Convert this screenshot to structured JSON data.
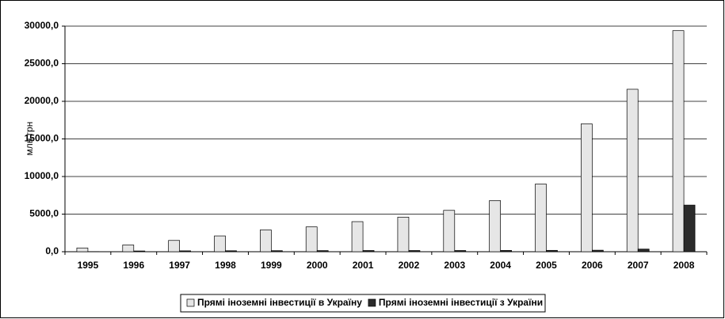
{
  "chart_data": {
    "type": "bar",
    "y_label": "млн грн",
    "categories": [
      "1995",
      "1996",
      "1997",
      "1998",
      "1999",
      "2000",
      "2001",
      "2002",
      "2003",
      "2004",
      "2005",
      "2006",
      "2007",
      "2008"
    ],
    "series": [
      {
        "name": "Прямі іноземні інвестиції в Україну",
        "color": "#e6e6e6",
        "values": [
          500,
          900,
          1500,
          2100,
          2900,
          3300,
          4000,
          4600,
          5500,
          6800,
          9000,
          17000,
          21600,
          29400
        ]
      },
      {
        "name": "Прямі іноземні інвестиції з України",
        "color": "#2b2b2b",
        "values": [
          20,
          100,
          120,
          130,
          140,
          150,
          160,
          160,
          160,
          170,
          180,
          200,
          350,
          6200
        ]
      }
    ],
    "ylim": [
      0,
      30000
    ],
    "yticks": [
      {
        "value": 0,
        "label": "0,0"
      },
      {
        "value": 5000,
        "label": "5000,0"
      },
      {
        "value": 10000,
        "label": "10000,0"
      },
      {
        "value": 15000,
        "label": "15000,0"
      },
      {
        "value": 20000,
        "label": "20000,0"
      },
      {
        "value": 25000,
        "label": "25000,0"
      },
      {
        "value": 30000,
        "label": "30000,0"
      }
    ],
    "grid": true,
    "legend": "bottom"
  }
}
